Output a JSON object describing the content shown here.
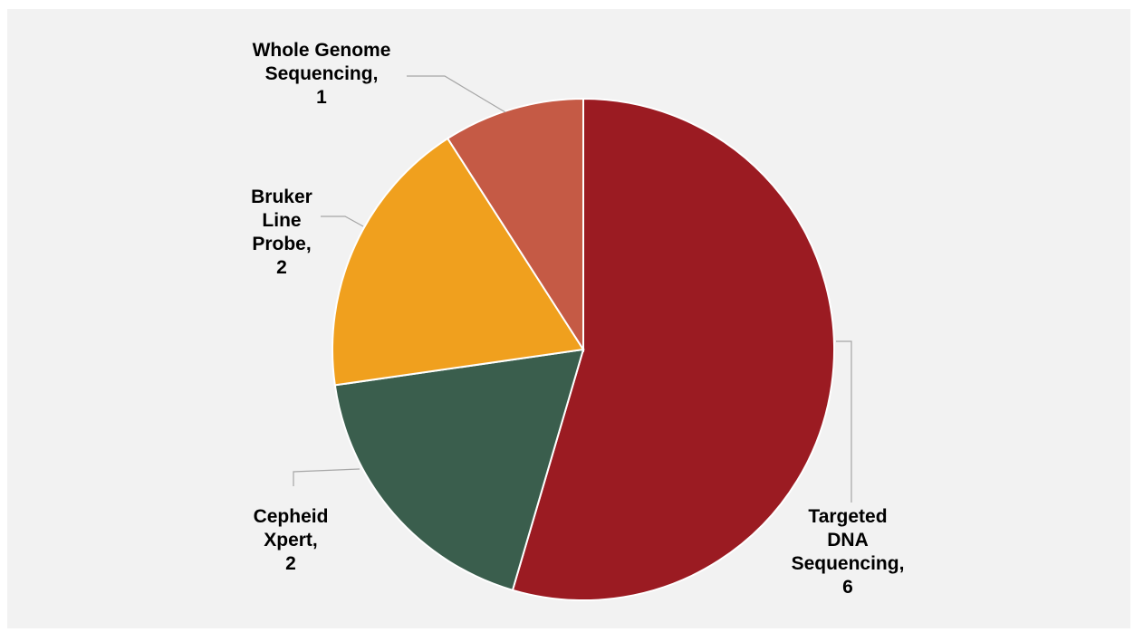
{
  "chart_data": {
    "type": "pie",
    "title": "",
    "legend": "none",
    "slices": [
      {
        "label_lines": [
          "Targeted",
          "DNA",
          "Sequencing,",
          "6"
        ],
        "category": "Targeted DNA Sequencing",
        "value": 6,
        "color": "#9b1b22"
      },
      {
        "label_lines": [
          "Cepheid",
          "Xpert,",
          "2"
        ],
        "category": "Cepheid Xpert",
        "value": 2,
        "color": "#3a5e4d"
      },
      {
        "label_lines": [
          "Bruker",
          "Line",
          "Probe,",
          "2"
        ],
        "category": "Bruker Line Probe",
        "value": 2,
        "color": "#f0a01e"
      },
      {
        "label_lines": [
          "Whole Genome",
          "Sequencing,",
          "1"
        ],
        "category": "Whole Genome Sequencing",
        "value": 1,
        "color": "#c55a45"
      }
    ]
  }
}
